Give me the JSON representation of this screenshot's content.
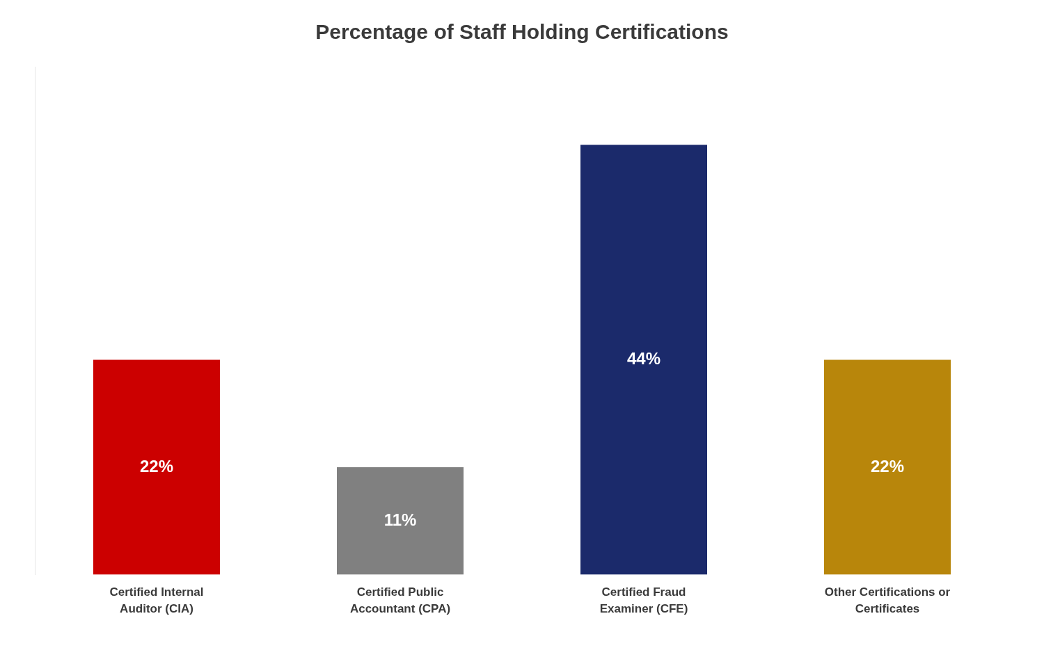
{
  "chart_data": {
    "type": "bar",
    "title": "Percentage of Staff Holding Certifications",
    "categories": [
      "Certified Internal\nAuditor (CIA)",
      "Certified Public\nAccountant (CPA)",
      "Certified Fraud\nExaminer (CFE)",
      "Other Certifications or\nCertificates"
    ],
    "values": [
      22,
      11,
      44,
      22
    ],
    "value_labels": [
      "22%",
      "11%",
      "44%",
      "22%"
    ],
    "colors": [
      "#CC0000",
      "#808080",
      "#1B2A6B",
      "#B8860B"
    ],
    "data_labels": true,
    "ylim": [
      0,
      52
    ],
    "grid": false,
    "tick_labels": "x"
  }
}
